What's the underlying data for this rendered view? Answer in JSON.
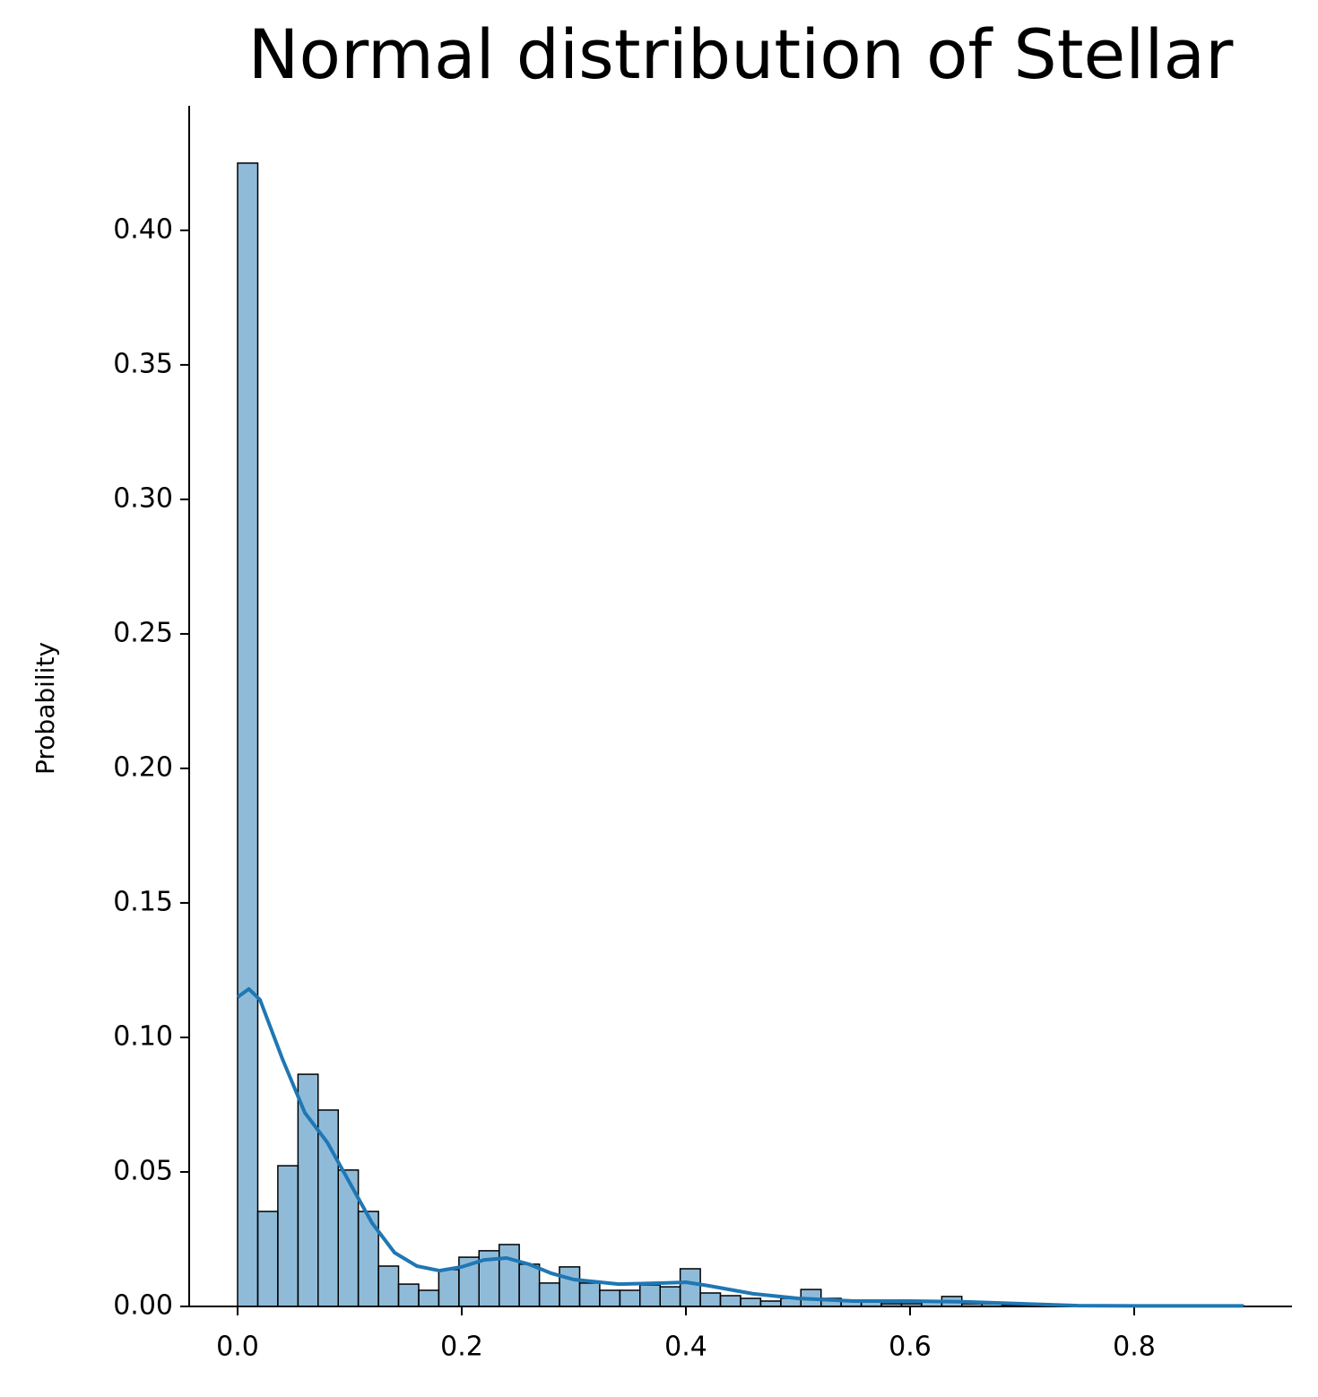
{
  "chart_data": {
    "type": "histogram",
    "title": "Normal distribution of Stellar",
    "ylabel": "Probability",
    "bins": [
      0,
      0.018,
      0.0359,
      0.0539,
      0.0718,
      0.0898,
      0.1077,
      0.1257,
      0.1436,
      0.1616,
      0.1795,
      0.1975,
      0.2154,
      0.2334,
      0.2513,
      0.2693,
      0.2872,
      0.3052,
      0.3231,
      0.3411,
      0.359,
      0.377,
      0.3949,
      0.4129,
      0.4308,
      0.4488,
      0.4667,
      0.4847,
      0.5026,
      0.5206,
      0.5385,
      0.5565,
      0.5744,
      0.5924,
      0.6103,
      0.6283,
      0.6462,
      0.6642,
      0.6821,
      0.7001,
      0.718,
      0.736,
      0.7539,
      0.7719,
      0.7898,
      0.8078,
      0.8257,
      0.8437,
      0.8616,
      0.8796,
      0.8975
    ],
    "values": [
      0.425,
      0.0353,
      0.0523,
      0.0863,
      0.073,
      0.0507,
      0.0353,
      0.015,
      0.0083,
      0.006,
      0.0137,
      0.0183,
      0.0207,
      0.023,
      0.0157,
      0.0087,
      0.0147,
      0.0087,
      0.006,
      0.006,
      0.008,
      0.0073,
      0.014,
      0.005,
      0.004,
      0.003,
      0.002,
      0.003,
      0.0063,
      0.003,
      0.002,
      0.002,
      0.001,
      0.001,
      0.002,
      0.0037,
      0.001,
      0.001,
      0.0005,
      0.0005,
      0.0003,
      0,
      0,
      0,
      0.0003,
      0,
      0,
      0,
      0,
      0.0003
    ],
    "color": "#1f77b4",
    "kde": {
      "color": "#1f77b4",
      "x": [
        0,
        0.01,
        0.02,
        0.04,
        0.06,
        0.08,
        0.1,
        0.12,
        0.14,
        0.16,
        0.18,
        0.2,
        0.22,
        0.24,
        0.26,
        0.28,
        0.3,
        0.34,
        0.38,
        0.4,
        0.42,
        0.46,
        0.5,
        0.55,
        0.6,
        0.65,
        0.7,
        0.75,
        0.8,
        0.8975
      ],
      "y": [
        0.115,
        0.118,
        0.114,
        0.092,
        0.072,
        0.061,
        0.046,
        0.031,
        0.02,
        0.015,
        0.0133,
        0.0147,
        0.0173,
        0.018,
        0.0157,
        0.0123,
        0.01,
        0.0083,
        0.0087,
        0.009,
        0.0077,
        0.0047,
        0.003,
        0.002,
        0.002,
        0.0017,
        0.001,
        0.0003,
        0.0002,
        0.0002
      ]
    },
    "xlim": [
      -0.0432,
      0.9408
    ],
    "ylim": [
      0,
      0.4463
    ],
    "xticks": [
      {
        "value": 0,
        "label": "0.0"
      },
      0.2,
      0.4,
      0.6,
      0.8
    ],
    "yticks": [
      {
        "value": 0,
        "label": "0.00"
      },
      0.05,
      {
        "value": 0.1,
        "label": "0.10"
      },
      0.15,
      {
        "value": 0.2,
        "label": "0.20"
      },
      0.25,
      {
        "value": 0.3,
        "label": "0.30"
      },
      0.35,
      {
        "value": 0.4,
        "label": "0.40"
      }
    ]
  }
}
